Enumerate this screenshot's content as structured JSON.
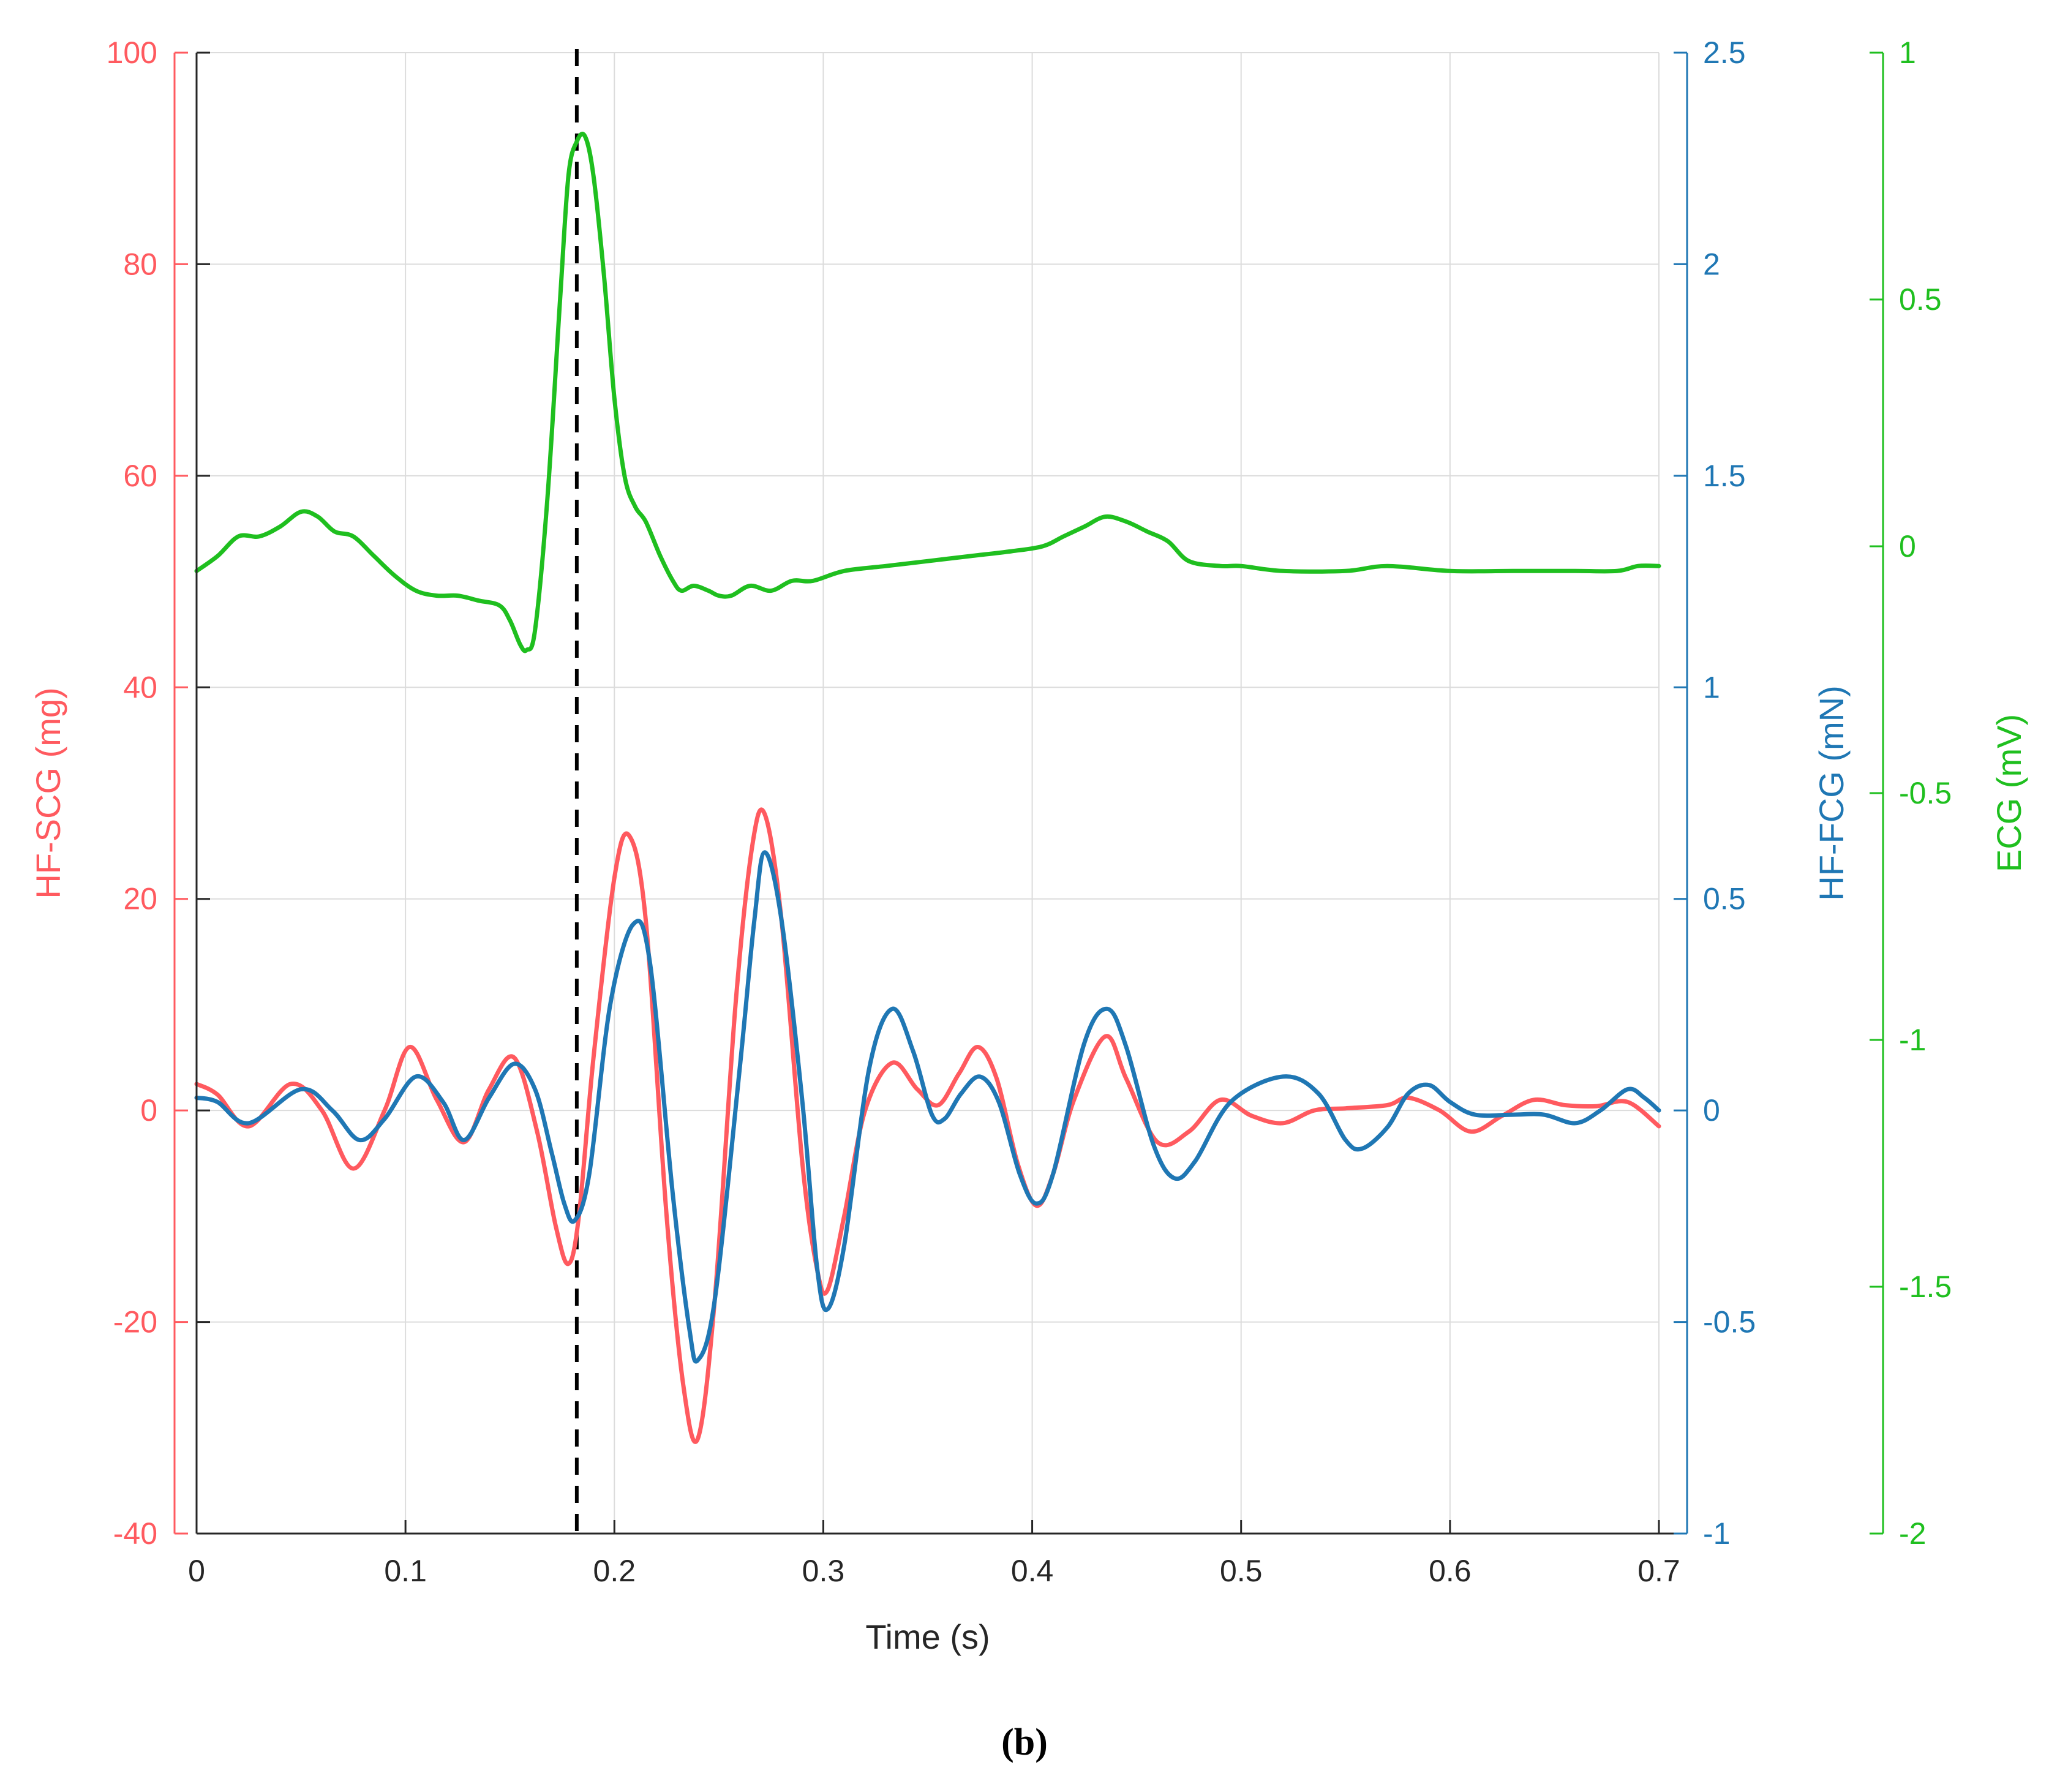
{
  "caption": "(b)",
  "chart_data": {
    "type": "line",
    "title": "",
    "xlabel": "Time (s)",
    "xlim": [
      0,
      0.7
    ],
    "xticks": [
      0,
      0.1,
      0.2,
      0.3,
      0.4,
      0.5,
      0.6,
      0.7
    ],
    "grid": true,
    "marker_line": {
      "x": 0.182,
      "style": "dashed",
      "color": "#000000"
    },
    "axes": [
      {
        "id": "scg",
        "side": "left",
        "label": "HF-SCG (mg)",
        "color": "#ff5a5f",
        "ylim": [
          -40,
          100
        ],
        "ticks": [
          -40,
          -20,
          0,
          20,
          40,
          60,
          80,
          100
        ]
      },
      {
        "id": "fcg",
        "side": "right",
        "label": "HF-FCG (mN)",
        "color": "#1f77b4",
        "ylim": [
          -1,
          2.5
        ],
        "ticks": [
          -1,
          -0.5,
          0,
          0.5,
          1,
          1.5,
          2,
          2.5
        ]
      },
      {
        "id": "ecg",
        "side": "right-outer",
        "label": "ECG (mV)",
        "color": "#1fbf1f",
        "ylim": [
          -2,
          1
        ],
        "ticks": [
          -2,
          -1.5,
          -1,
          -0.5,
          0,
          0.5,
          1
        ]
      }
    ],
    "series": [
      {
        "name": "HF-SCG",
        "axis": "scg",
        "color": "#ff5a5f",
        "points": [
          [
            0,
            2.5
          ],
          [
            0.01,
            1.5
          ],
          [
            0.025,
            -1.5
          ],
          [
            0.045,
            2.5
          ],
          [
            0.06,
            0
          ],
          [
            0.075,
            -5.5
          ],
          [
            0.09,
            0
          ],
          [
            0.102,
            6
          ],
          [
            0.115,
            1
          ],
          [
            0.128,
            -3
          ],
          [
            0.14,
            2
          ],
          [
            0.152,
            5
          ],
          [
            0.163,
            -2
          ],
          [
            0.172,
            -11
          ],
          [
            0.178,
            -14.5
          ],
          [
            0.183,
            -10
          ],
          [
            0.19,
            5
          ],
          [
            0.2,
            22
          ],
          [
            0.207,
            26
          ],
          [
            0.215,
            18
          ],
          [
            0.225,
            -10
          ],
          [
            0.233,
            -26
          ],
          [
            0.24,
            -31
          ],
          [
            0.248,
            -18
          ],
          [
            0.258,
            10
          ],
          [
            0.266,
            25
          ],
          [
            0.272,
            28
          ],
          [
            0.28,
            18
          ],
          [
            0.29,
            -5
          ],
          [
            0.297,
            -15
          ],
          [
            0.302,
            -17
          ],
          [
            0.31,
            -10
          ],
          [
            0.32,
            0
          ],
          [
            0.333,
            4.5
          ],
          [
            0.345,
            2
          ],
          [
            0.355,
            0.5
          ],
          [
            0.365,
            3.5
          ],
          [
            0.374,
            6
          ],
          [
            0.383,
            3
          ],
          [
            0.393,
            -5
          ],
          [
            0.402,
            -9
          ],
          [
            0.41,
            -6
          ],
          [
            0.42,
            1
          ],
          [
            0.435,
            7
          ],
          [
            0.445,
            3
          ],
          [
            0.46,
            -3
          ],
          [
            0.475,
            -2
          ],
          [
            0.49,
            1
          ],
          [
            0.505,
            -0.5
          ],
          [
            0.52,
            -1.2
          ],
          [
            0.535,
            0
          ],
          [
            0.55,
            0.2
          ],
          [
            0.57,
            0.5
          ],
          [
            0.58,
            1.2
          ],
          [
            0.595,
            0
          ],
          [
            0.61,
            -2
          ],
          [
            0.625,
            -0.5
          ],
          [
            0.64,
            1
          ],
          [
            0.655,
            0.5
          ],
          [
            0.67,
            0.4
          ],
          [
            0.685,
            0.8
          ],
          [
            0.7,
            -1.5
          ]
        ]
      },
      {
        "name": "HF-FCG",
        "axis": "fcg",
        "color": "#1f77b4",
        "points": [
          [
            0,
            0.03
          ],
          [
            0.01,
            0.02
          ],
          [
            0.025,
            -0.03
          ],
          [
            0.05,
            0.05
          ],
          [
            0.065,
            0
          ],
          [
            0.078,
            -0.07
          ],
          [
            0.09,
            -0.02
          ],
          [
            0.105,
            0.08
          ],
          [
            0.118,
            0.02
          ],
          [
            0.128,
            -0.07
          ],
          [
            0.14,
            0.03
          ],
          [
            0.152,
            0.11
          ],
          [
            0.162,
            0.05
          ],
          [
            0.17,
            -0.1
          ],
          [
            0.176,
            -0.22
          ],
          [
            0.181,
            -0.26
          ],
          [
            0.188,
            -0.15
          ],
          [
            0.198,
            0.25
          ],
          [
            0.209,
            0.44
          ],
          [
            0.217,
            0.35
          ],
          [
            0.228,
            -0.2
          ],
          [
            0.236,
            -0.52
          ],
          [
            0.24,
            -0.59
          ],
          [
            0.248,
            -0.45
          ],
          [
            0.26,
            0.1
          ],
          [
            0.267,
            0.45
          ],
          [
            0.272,
            0.61
          ],
          [
            0.28,
            0.45
          ],
          [
            0.29,
            0.02
          ],
          [
            0.297,
            -0.37
          ],
          [
            0.302,
            -0.47
          ],
          [
            0.31,
            -0.32
          ],
          [
            0.322,
            0.1
          ],
          [
            0.333,
            0.24
          ],
          [
            0.343,
            0.14
          ],
          [
            0.352,
            -0.01
          ],
          [
            0.358,
            -0.02
          ],
          [
            0.366,
            0.04
          ],
          [
            0.375,
            0.08
          ],
          [
            0.384,
            0.02
          ],
          [
            0.394,
            -0.15
          ],
          [
            0.402,
            -0.22
          ],
          [
            0.41,
            -0.15
          ],
          [
            0.425,
            0.16
          ],
          [
            0.436,
            0.24
          ],
          [
            0.445,
            0.15
          ],
          [
            0.458,
            -0.08
          ],
          [
            0.468,
            -0.16
          ],
          [
            0.478,
            -0.12
          ],
          [
            0.495,
            0.02
          ],
          [
            0.52,
            0.08
          ],
          [
            0.537,
            0.04
          ],
          [
            0.55,
            -0.07
          ],
          [
            0.558,
            -0.09
          ],
          [
            0.57,
            -0.04
          ],
          [
            0.58,
            0.04
          ],
          [
            0.59,
            0.06
          ],
          [
            0.6,
            0.02
          ],
          [
            0.612,
            -0.01
          ],
          [
            0.63,
            -0.01
          ],
          [
            0.645,
            -0.01
          ],
          [
            0.66,
            -0.03
          ],
          [
            0.672,
            0
          ],
          [
            0.685,
            0.05
          ],
          [
            0.693,
            0.03
          ],
          [
            0.7,
            0
          ]
        ]
      },
      {
        "name": "ECG",
        "axis": "ecg",
        "color": "#1fbf1f",
        "points": [
          [
            0,
            -0.05
          ],
          [
            0.01,
            -0.02
          ],
          [
            0.02,
            0.02
          ],
          [
            0.03,
            0.02
          ],
          [
            0.04,
            0.04
          ],
          [
            0.05,
            0.07
          ],
          [
            0.058,
            0.06
          ],
          [
            0.066,
            0.03
          ],
          [
            0.075,
            0.02
          ],
          [
            0.085,
            -0.02
          ],
          [
            0.095,
            -0.06
          ],
          [
            0.105,
            -0.09
          ],
          [
            0.115,
            -0.1
          ],
          [
            0.125,
            -0.1
          ],
          [
            0.135,
            -0.11
          ],
          [
            0.145,
            -0.12
          ],
          [
            0.15,
            -0.15
          ],
          [
            0.155,
            -0.2
          ],
          [
            0.158,
            -0.21
          ],
          [
            0.162,
            -0.17
          ],
          [
            0.168,
            0.1
          ],
          [
            0.174,
            0.5
          ],
          [
            0.178,
            0.75
          ],
          [
            0.182,
            0.82
          ],
          [
            0.186,
            0.83
          ],
          [
            0.19,
            0.75
          ],
          [
            0.195,
            0.55
          ],
          [
            0.2,
            0.3
          ],
          [
            0.205,
            0.14
          ],
          [
            0.21,
            0.08
          ],
          [
            0.215,
            0.05
          ],
          [
            0.222,
            -0.02
          ],
          [
            0.228,
            -0.07
          ],
          [
            0.232,
            -0.09
          ],
          [
            0.238,
            -0.08
          ],
          [
            0.245,
            -0.09
          ],
          [
            0.25,
            -0.1
          ],
          [
            0.256,
            -0.1
          ],
          [
            0.265,
            -0.08
          ],
          [
            0.275,
            -0.09
          ],
          [
            0.285,
            -0.07
          ],
          [
            0.295,
            -0.07
          ],
          [
            0.31,
            -0.05
          ],
          [
            0.33,
            -0.04
          ],
          [
            0.35,
            -0.03
          ],
          [
            0.37,
            -0.02
          ],
          [
            0.39,
            -0.01
          ],
          [
            0.405,
            0
          ],
          [
            0.415,
            0.02
          ],
          [
            0.425,
            0.04
          ],
          [
            0.435,
            0.06
          ],
          [
            0.445,
            0.05
          ],
          [
            0.455,
            0.03
          ],
          [
            0.465,
            0.01
          ],
          [
            0.475,
            -0.03
          ],
          [
            0.49,
            -0.04
          ],
          [
            0.5,
            -0.04
          ],
          [
            0.52,
            -0.05
          ],
          [
            0.55,
            -0.05
          ],
          [
            0.57,
            -0.04
          ],
          [
            0.6,
            -0.05
          ],
          [
            0.63,
            -0.05
          ],
          [
            0.66,
            -0.05
          ],
          [
            0.68,
            -0.05
          ],
          [
            0.69,
            -0.04
          ],
          [
            0.7,
            -0.04
          ]
        ]
      }
    ]
  }
}
